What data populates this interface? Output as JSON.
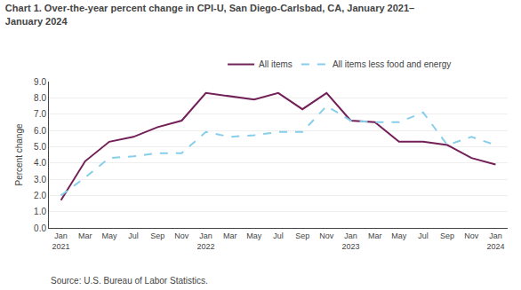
{
  "chart_data": {
    "type": "line",
    "title": "Chart 1. Over-the-year percent change in CPI-U, San Diego-Carlsbad, CA, January 2021–\nJanuary 2024",
    "y_label": "Percent change",
    "annotations": [
      "Source: U.S. Bureau of Labor Statistics."
    ],
    "categories": [
      "Jan\n2021",
      "Mar",
      "May",
      "Jul",
      "Sep",
      "Nov",
      "Jan\n2022",
      "Mar",
      "May",
      "Jul",
      "Sep",
      "Nov",
      "Jan\n2023",
      "Mar",
      "May",
      "Jul",
      "Sep",
      "Nov",
      "Jan\n2024"
    ],
    "series": [
      {
        "name": "All items",
        "color": "#722057",
        "line_style": "solid",
        "values": [
          1.7,
          4.1,
          5.3,
          5.6,
          6.2,
          6.6,
          8.3,
          8.1,
          7.9,
          8.3,
          7.3,
          8.3,
          6.6,
          6.5,
          5.3,
          5.3,
          5.1,
          4.3,
          3.9
        ]
      },
      {
        "name": "All items less food and energy",
        "color": "#87CEEB",
        "line_style": "dashed",
        "values": [
          2.0,
          3.1,
          4.3,
          4.4,
          4.6,
          4.6,
          5.9,
          5.6,
          5.7,
          5.9,
          5.9,
          7.5,
          6.6,
          6.5,
          6.5,
          7.1,
          5.1,
          5.6,
          5.1
        ]
      }
    ],
    "ylim": [
      0.0,
      9.0
    ],
    "yticks": [
      {
        "value": 0,
        "label": "0.0"
      },
      {
        "value": 1,
        "label": "1.0"
      },
      {
        "value": 2,
        "label": "2.0"
      },
      {
        "value": 3,
        "label": "3.0"
      },
      {
        "value": 4,
        "label": "4.0"
      },
      {
        "value": 5,
        "label": "5.0"
      },
      {
        "value": 6,
        "label": "6.0"
      },
      {
        "value": 7,
        "label": "7.0"
      },
      {
        "value": 8,
        "label": "8.0"
      },
      {
        "value": 9,
        "label": "9.0"
      }
    ],
    "grid": true,
    "legend": "top"
  }
}
